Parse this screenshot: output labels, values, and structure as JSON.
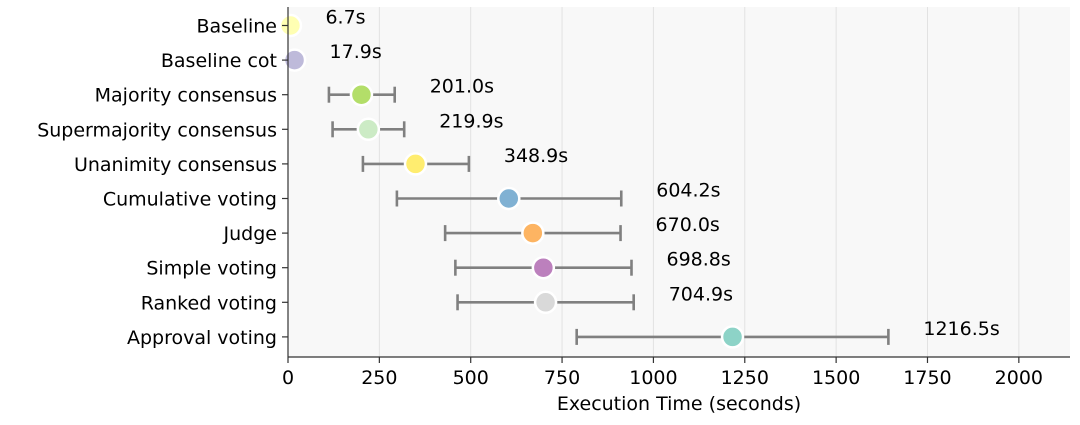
{
  "chart_data": {
    "type": "scatter",
    "title": "",
    "xlabel": "Execution Time (seconds)",
    "ylabel": "",
    "xlim": [
      0,
      2140
    ],
    "xticks": [
      0,
      250,
      500,
      750,
      1000,
      1250,
      1500,
      1750,
      2000
    ],
    "grid": "vertical",
    "series": [
      {
        "name": "Baseline",
        "mean": 6.7,
        "err_low": 6.7,
        "err_high": 6.7,
        "label": "6.7s",
        "color": "#ffffb3"
      },
      {
        "name": "Baseline cot",
        "mean": 17.9,
        "err_low": 17.9,
        "err_high": 17.9,
        "label": "17.9s",
        "color": "#bebada"
      },
      {
        "name": "Majority consensus",
        "mean": 201.0,
        "err_low": 112,
        "err_high": 292,
        "label": "201.0s",
        "color": "#b3de69"
      },
      {
        "name": "Supermajority consensus",
        "mean": 219.9,
        "err_low": 122,
        "err_high": 318,
        "label": "219.9s",
        "color": "#ccebc5"
      },
      {
        "name": "Unanimity consensus",
        "mean": 348.9,
        "err_low": 205,
        "err_high": 495,
        "label": "348.9s",
        "color": "#ffed6f"
      },
      {
        "name": "Cumulative voting",
        "mean": 604.2,
        "err_low": 298,
        "err_high": 912,
        "label": "604.2s",
        "color": "#80b1d3"
      },
      {
        "name": "Judge",
        "mean": 670.0,
        "err_low": 430,
        "err_high": 910,
        "label": "670.0s",
        "color": "#fdb462"
      },
      {
        "name": "Simple voting",
        "mean": 698.8,
        "err_low": 458,
        "err_high": 940,
        "label": "698.8s",
        "color": "#bc80bd"
      },
      {
        "name": "Ranked voting",
        "mean": 704.9,
        "err_low": 464,
        "err_high": 946,
        "label": "704.9s",
        "color": "#d9d9d9"
      },
      {
        "name": "Approval voting",
        "mean": 1216.5,
        "err_low": 790,
        "err_high": 1643,
        "label": "1216.5s",
        "color": "#8dd3c7"
      }
    ]
  }
}
